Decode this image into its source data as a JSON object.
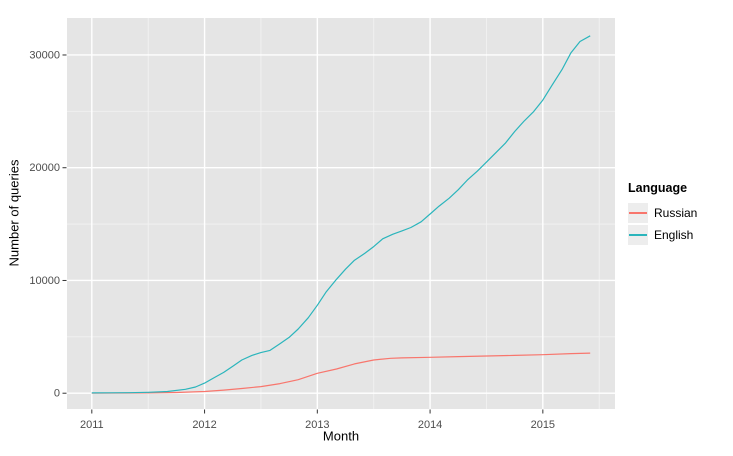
{
  "figure": {
    "background": "#ffffff",
    "panel_background": "#e5e5e5",
    "grid_major_color": "#ffffff",
    "grid_minor_color": "#f2f2f2",
    "tick_mark_color": "#333333",
    "tick_label_color": "#4d4d4d"
  },
  "axes": {
    "x": {
      "title": "Month",
      "tick_labels": [
        "2011",
        "2012",
        "2013",
        "2014",
        "2015"
      ],
      "tick_values": [
        2011,
        2012,
        2013,
        2014,
        2015
      ],
      "minor_values": [
        2011.5,
        2012.5,
        2013.5,
        2014.5,
        2015.5
      ]
    },
    "y": {
      "title": "Number of queries",
      "tick_labels": [
        "0",
        "10000",
        "20000",
        "30000"
      ],
      "tick_values": [
        0,
        10000,
        20000,
        30000
      ],
      "minor_values": [
        5000,
        15000,
        25000
      ]
    }
  },
  "legend": {
    "title": "Language",
    "items": [
      {
        "label": "Russian",
        "color": "#F8766D"
      },
      {
        "label": "English",
        "color": "#2BB5BC"
      }
    ]
  },
  "chart_data": {
    "type": "line",
    "title": "",
    "xlabel": "Month",
    "ylabel": "Number of queries",
    "x_unit": "decimal_year",
    "xlim": [
      2010.78,
      2015.64
    ],
    "ylim": [
      -1400,
      33280
    ],
    "grid": true,
    "legend_position": "right",
    "legend_title": "Language",
    "series": [
      {
        "name": "Russian",
        "color": "#F8766D",
        "points": [
          [
            2011.0,
            10
          ],
          [
            2011.25,
            20
          ],
          [
            2011.5,
            30
          ],
          [
            2011.75,
            60
          ],
          [
            2012.0,
            150
          ],
          [
            2012.17,
            280
          ],
          [
            2012.33,
            420
          ],
          [
            2012.5,
            590
          ],
          [
            2012.67,
            850
          ],
          [
            2012.83,
            1200
          ],
          [
            2013.0,
            1770
          ],
          [
            2013.17,
            2150
          ],
          [
            2013.33,
            2600
          ],
          [
            2013.5,
            2950
          ],
          [
            2013.65,
            3100
          ],
          [
            2013.75,
            3130
          ],
          [
            2014.0,
            3190
          ],
          [
            2014.25,
            3250
          ],
          [
            2014.5,
            3300
          ],
          [
            2014.75,
            3350
          ],
          [
            2015.0,
            3420
          ],
          [
            2015.25,
            3510
          ],
          [
            2015.42,
            3560
          ]
        ]
      },
      {
        "name": "English",
        "color": "#2BB5BC",
        "points": [
          [
            2011.0,
            30
          ],
          [
            2011.17,
            40
          ],
          [
            2011.33,
            50
          ],
          [
            2011.5,
            80
          ],
          [
            2011.67,
            150
          ],
          [
            2011.83,
            350
          ],
          [
            2011.92,
            550
          ],
          [
            2012.0,
            900
          ],
          [
            2012.08,
            1350
          ],
          [
            2012.17,
            1850
          ],
          [
            2012.25,
            2400
          ],
          [
            2012.33,
            2950
          ],
          [
            2012.42,
            3350
          ],
          [
            2012.5,
            3600
          ],
          [
            2012.58,
            3800
          ],
          [
            2012.67,
            4400
          ],
          [
            2012.75,
            4950
          ],
          [
            2012.83,
            5700
          ],
          [
            2012.92,
            6700
          ],
          [
            2013.0,
            7800
          ],
          [
            2013.08,
            9000
          ],
          [
            2013.17,
            10100
          ],
          [
            2013.25,
            11000
          ],
          [
            2013.33,
            11800
          ],
          [
            2013.42,
            12400
          ],
          [
            2013.5,
            13000
          ],
          [
            2013.58,
            13700
          ],
          [
            2013.67,
            14100
          ],
          [
            2013.75,
            14400
          ],
          [
            2013.83,
            14700
          ],
          [
            2013.92,
            15200
          ],
          [
            2014.0,
            15900
          ],
          [
            2014.08,
            16600
          ],
          [
            2014.17,
            17300
          ],
          [
            2014.25,
            18050
          ],
          [
            2014.33,
            18900
          ],
          [
            2014.42,
            19700
          ],
          [
            2014.5,
            20500
          ],
          [
            2014.58,
            21300
          ],
          [
            2014.67,
            22200
          ],
          [
            2014.75,
            23200
          ],
          [
            2014.83,
            24100
          ],
          [
            2014.92,
            25000
          ],
          [
            2015.0,
            26000
          ],
          [
            2015.08,
            27300
          ],
          [
            2015.17,
            28700
          ],
          [
            2015.25,
            30200
          ],
          [
            2015.33,
            31200
          ],
          [
            2015.42,
            31700
          ]
        ]
      }
    ]
  }
}
